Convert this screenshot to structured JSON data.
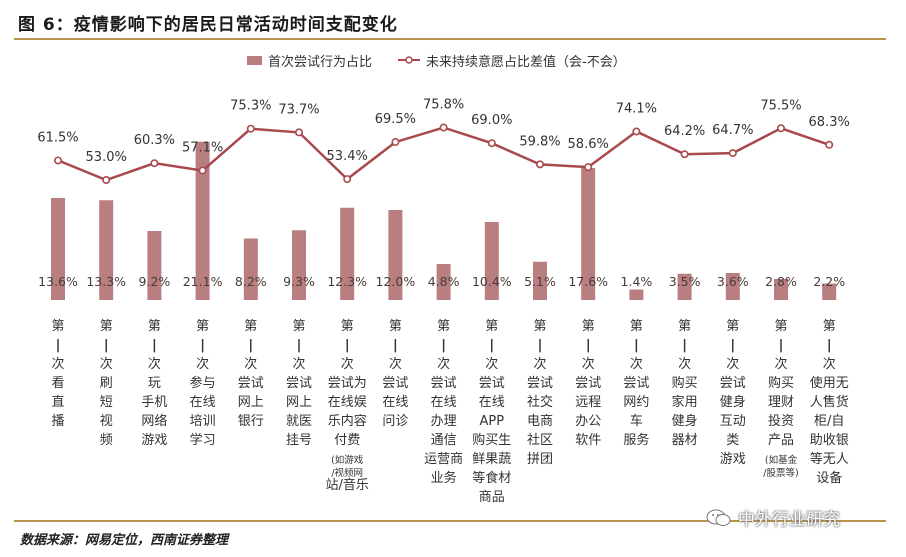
{
  "figure": {
    "title": "图 6：疫情影响下的居民日常活动时间支配变化",
    "source": "数据来源：网易定位，西南证券整理",
    "watermark": "中外行业研究",
    "watermark_icon": "wechat-icon"
  },
  "chart_data": {
    "type": "bar",
    "categories": [
      "第一次看直播",
      "第一次刷短视频",
      "第一次玩手机网络游戏",
      "第一次参与在线培训学习",
      "第一次尝试网上银行",
      "第一次尝试网上就医挂号",
      "第一次尝试为在线娱乐内容付费(如游戏/视频网站/音乐)",
      "第一次尝试在线问诊",
      "第一次尝试在线办理通信运营商业务",
      "第一次尝试在线APP购买生鲜果蔬等食材商品",
      "第一次尝试社交电商社区拼团",
      "第一次尝试远程办公软件",
      "第一次尝试网约车服务",
      "第一次购买家用健身器材",
      "第一次尝试健身互动类游戏",
      "第一次购买理财投资产品(如基金/股票等)",
      "第一次使用无人售货柜/自助收银等无人设备"
    ],
    "category_lines": [
      [
        "第",
        "一",
        "次",
        "看",
        "直",
        "播"
      ],
      [
        "第",
        "一",
        "次",
        "刷",
        "短",
        "视",
        "频"
      ],
      [
        "第",
        "一",
        "次",
        "玩",
        "手机",
        "网络",
        "游戏"
      ],
      [
        "第",
        "一",
        "次",
        "参与",
        "在线",
        "培训",
        "学习"
      ],
      [
        "第",
        "一",
        "次",
        "尝试",
        "网上",
        "银行"
      ],
      [
        "第",
        "一",
        "次",
        "尝试",
        "网上",
        "就医",
        "挂号"
      ],
      [
        "第",
        "一",
        "次",
        "尝试为",
        "在线娱",
        "乐内容",
        "付费",
        "(如游戏",
        "/视频网",
        "站/音乐"
      ],
      [
        "第",
        "一",
        "次",
        "尝试",
        "在线",
        "问诊"
      ],
      [
        "第",
        "一",
        "次",
        "尝试",
        "在线",
        "办理",
        "通信",
        "运营商",
        "业务"
      ],
      [
        "第",
        "一",
        "次",
        "尝试",
        "在线",
        "APP",
        "购买生",
        "鲜果蔬",
        "等食材",
        "商品"
      ],
      [
        "第",
        "一",
        "次",
        "尝试",
        "社交",
        "电商",
        "社区",
        "拼团"
      ],
      [
        "第",
        "一",
        "次",
        "尝试",
        "远程",
        "办公",
        "软件"
      ],
      [
        "第",
        "一",
        "次",
        "尝试",
        "网约",
        "车",
        "服务"
      ],
      [
        "第",
        "一",
        "次",
        "购买",
        "家用",
        "健身",
        "器材"
      ],
      [
        "第",
        "一",
        "次",
        "尝试",
        "健身",
        "互动",
        "类",
        "游戏"
      ],
      [
        "第",
        "一",
        "次",
        "购买",
        "理财",
        "投资",
        "产品",
        "(如基金",
        "/股票等)"
      ],
      [
        "第",
        "一",
        "次",
        "使用无",
        "人售货",
        "柜/自",
        "助收银",
        "等无人",
        "设备"
      ]
    ],
    "series": [
      {
        "name": "首次尝试行为占比",
        "type": "bar",
        "color": "#b97f80",
        "values": [
          13.6,
          13.3,
          9.2,
          21.1,
          8.2,
          9.3,
          12.3,
          12.0,
          4.8,
          10.4,
          5.1,
          17.6,
          1.4,
          3.5,
          3.6,
          2.8,
          2.2
        ],
        "labels": [
          "13.6%",
          "13.3%",
          "9.2%",
          "21.1%",
          "8.2%",
          "9.3%",
          "12.3%",
          "12.0%",
          "4.8%",
          "10.4%",
          "5.1%",
          "17.6%",
          "1.4%",
          "3.5%",
          "3.6%",
          "2.8%",
          "2.2%"
        ]
      },
      {
        "name": "未来持续意愿占比差值（会-不会）",
        "type": "line",
        "color": "#a8494d",
        "values": [
          61.5,
          53.0,
          60.3,
          57.1,
          75.3,
          73.7,
          53.4,
          69.5,
          75.8,
          69.0,
          59.8,
          58.6,
          74.1,
          64.2,
          64.7,
          75.5,
          68.3
        ],
        "labels": [
          "61.5%",
          "53.0%",
          "60.3%",
          "57.1%",
          "75.3%",
          "73.7%",
          "53.4%",
          "69.5%",
          "75.8%",
          "69.0%",
          "59.8%",
          "58.6%",
          "74.1%",
          "64.2%",
          "64.7%",
          "75.5%",
          "68.3%"
        ]
      }
    ],
    "legend_position": "top",
    "grid": false
  }
}
